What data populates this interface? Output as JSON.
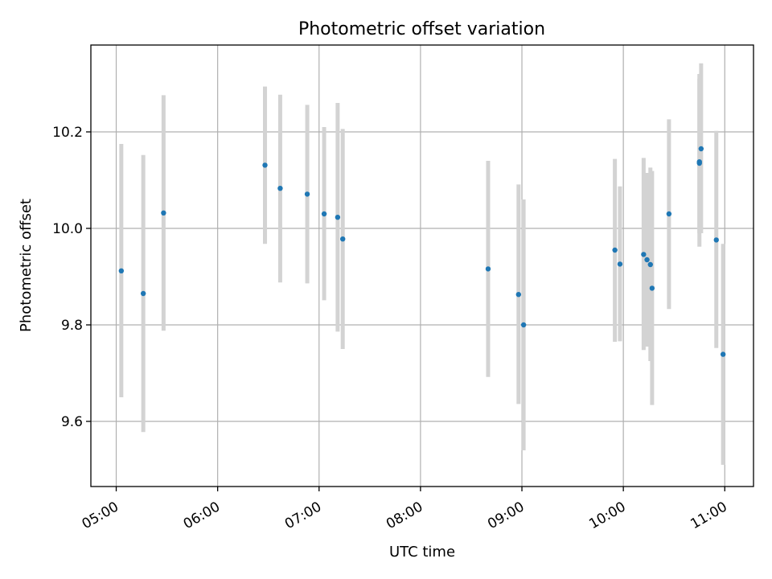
{
  "chart_data": {
    "type": "scatter",
    "title": "Photometric offset variation",
    "xlabel": "UTC time",
    "ylabel": "Photometric offset",
    "x_ticks": [
      "05:00",
      "06:00",
      "07:00",
      "08:00",
      "09:00",
      "10:00",
      "11:00"
    ],
    "y_ticks": [
      "9.6",
      "9.8",
      "10.0",
      "10.2"
    ],
    "xlim": [
      "04:45",
      "11:17"
    ],
    "ylim": [
      9.465,
      10.38
    ],
    "grid": true,
    "colors": {
      "point": "#1f77b4",
      "error_bar": "#d3d3d3"
    },
    "points": [
      {
        "x": "05:03",
        "y": 9.912,
        "ylow": 9.65,
        "yhigh": 10.175
      },
      {
        "x": "05:16",
        "y": 9.865,
        "ylow": 9.578,
        "yhigh": 10.152
      },
      {
        "x": "05:28",
        "y": 10.032,
        "ylow": 9.788,
        "yhigh": 10.276
      },
      {
        "x": "06:28",
        "y": 10.131,
        "ylow": 9.968,
        "yhigh": 10.294
      },
      {
        "x": "06:37",
        "y": 10.083,
        "ylow": 9.888,
        "yhigh": 10.277
      },
      {
        "x": "06:53",
        "y": 10.071,
        "ylow": 9.886,
        "yhigh": 10.256
      },
      {
        "x": "07:03",
        "y": 10.03,
        "ylow": 9.851,
        "yhigh": 10.21
      },
      {
        "x": "07:11",
        "y": 10.023,
        "ylow": 9.786,
        "yhigh": 10.26
      },
      {
        "x": "07:14",
        "y": 9.978,
        "ylow": 9.75,
        "yhigh": 10.206
      },
      {
        "x": "08:40",
        "y": 9.916,
        "ylow": 9.692,
        "yhigh": 10.14
      },
      {
        "x": "08:58",
        "y": 9.863,
        "ylow": 9.636,
        "yhigh": 10.091
      },
      {
        "x": "09:01",
        "y": 9.8,
        "ylow": 9.54,
        "yhigh": 10.06
      },
      {
        "x": "09:55",
        "y": 9.955,
        "ylow": 9.765,
        "yhigh": 10.144
      },
      {
        "x": "09:58",
        "y": 9.926,
        "ylow": 9.766,
        "yhigh": 10.087
      },
      {
        "x": "10:12",
        "y": 9.946,
        "ylow": 9.748,
        "yhigh": 10.146
      },
      {
        "x": "10:14",
        "y": 9.935,
        "ylow": 9.755,
        "yhigh": 10.115
      },
      {
        "x": "10:16",
        "y": 9.925,
        "ylow": 9.725,
        "yhigh": 10.126
      },
      {
        "x": "10:17",
        "y": 9.876,
        "ylow": 9.634,
        "yhigh": 10.119
      },
      {
        "x": "10:27",
        "y": 10.03,
        "ylow": 9.833,
        "yhigh": 10.226
      },
      {
        "x": "10:45",
        "y": 10.135,
        "ylow": 9.962,
        "yhigh": 10.31
      },
      {
        "x": "10:45",
        "y": 10.138,
        "ylow": 9.99,
        "yhigh": 10.32
      },
      {
        "x": "10:46",
        "y": 10.165,
        "ylow": 9.99,
        "yhigh": 10.342
      },
      {
        "x": "10:55",
        "y": 9.976,
        "ylow": 9.752,
        "yhigh": 10.202
      },
      {
        "x": "10:59",
        "y": 9.739,
        "ylow": 9.51,
        "yhigh": 9.968
      }
    ]
  }
}
